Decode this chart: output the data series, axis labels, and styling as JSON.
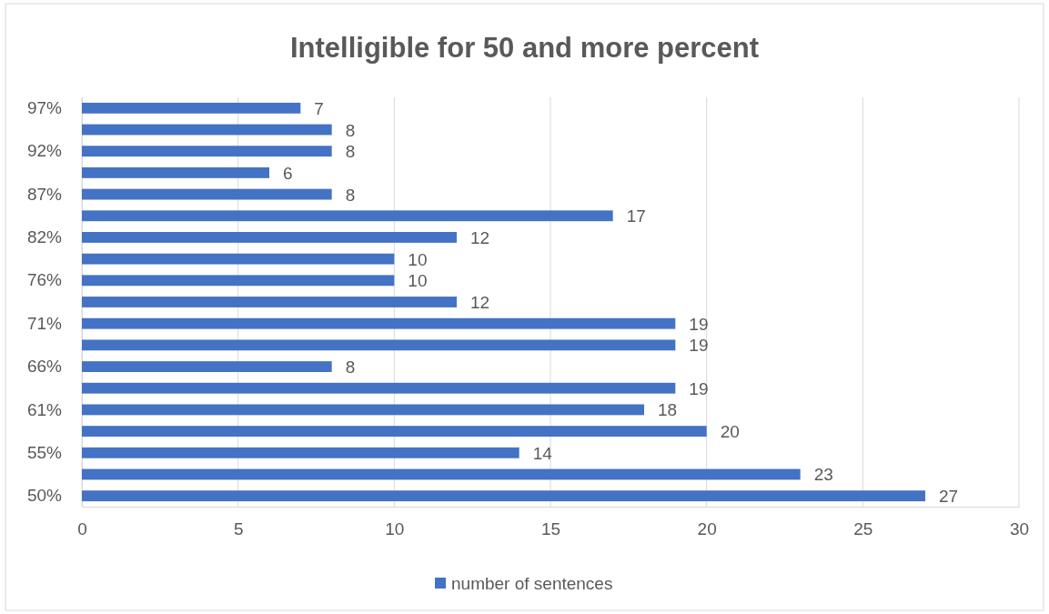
{
  "chart_data": {
    "type": "bar",
    "orientation": "horizontal",
    "title": "Intelligible for 50 and more percent",
    "categories": [
      "97%",
      null,
      "92%",
      null,
      "87%",
      null,
      "82%",
      null,
      "76%",
      null,
      "71%",
      null,
      "66%",
      null,
      "61%",
      null,
      "55%",
      null,
      "50%"
    ],
    "series": [
      {
        "name": "number of sentences",
        "color": "#4472c4",
        "values": [
          7,
          8,
          8,
          6,
          8,
          17,
          12,
          10,
          10,
          12,
          19,
          19,
          8,
          19,
          18,
          20,
          14,
          23,
          27
        ]
      }
    ],
    "xlim": [
      0,
      30
    ],
    "xticks": [
      0,
      5,
      10,
      15,
      20,
      25,
      30
    ],
    "grid": "x",
    "legend": "bottom",
    "data_labels": true
  }
}
